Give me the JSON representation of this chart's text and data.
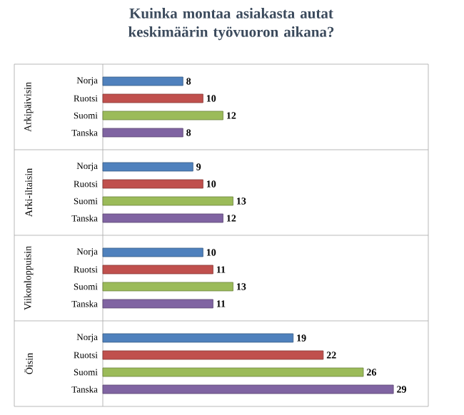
{
  "chart_data": {
    "type": "bar",
    "orientation": "horizontal",
    "title": "Kuinka montaa asiakasta autat keskimäärin työvuoron aikana?",
    "categories": [
      "Arkipäivisin",
      "Arki-iltaisin",
      "Viikonloppuisin",
      "Öisin"
    ],
    "series": [
      {
        "name": "Norja",
        "color": "#4f81bd",
        "values": [
          8,
          9,
          10,
          19
        ]
      },
      {
        "name": "Ruotsi",
        "color": "#c0504d",
        "values": [
          10,
          10,
          11,
          22
        ]
      },
      {
        "name": "Suomi",
        "color": "#9bbb59",
        "values": [
          12,
          13,
          13,
          26
        ]
      },
      {
        "name": "Tanska",
        "color": "#8064a2",
        "values": [
          8,
          12,
          11,
          29
        ]
      }
    ],
    "data_labels": true
  }
}
